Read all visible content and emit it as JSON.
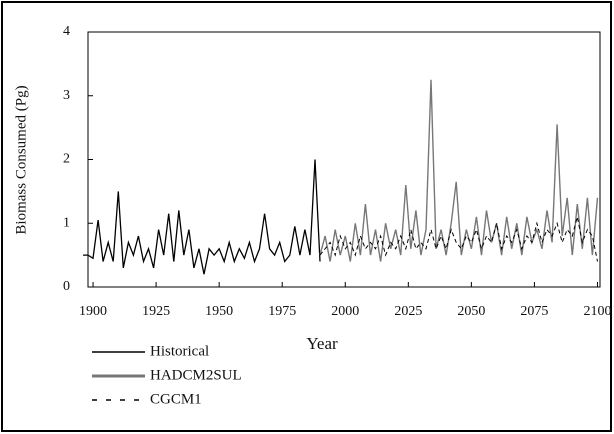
{
  "chart_data": {
    "type": "line",
    "xlabel": "Year",
    "ylabel": "Biomass Consumed (Pg)",
    "xlim": [
      1898,
      2101
    ],
    "xticks": [
      1900,
      1925,
      1950,
      1975,
      2000,
      2025,
      2050,
      2075,
      2100
    ],
    "ylim": [
      0,
      4
    ],
    "yticks": [
      0,
      1,
      2,
      3,
      4
    ],
    "series": [
      {
        "name": "Historical",
        "color": "#000000",
        "x": [
          1896,
          1898,
          1900,
          1902,
          1904,
          1906,
          1908,
          1910,
          1912,
          1914,
          1916,
          1918,
          1920,
          1922,
          1924,
          1926,
          1928,
          1930,
          1932,
          1934,
          1936,
          1938,
          1940,
          1942,
          1944,
          1946,
          1948,
          1950,
          1952,
          1954,
          1956,
          1958,
          1960,
          1962,
          1964,
          1966,
          1968,
          1970,
          1972,
          1974,
          1976,
          1978,
          1980,
          1982,
          1984,
          1986,
          1988,
          1990
        ],
        "values": [
          0.5,
          0.5,
          0.45,
          1.05,
          0.4,
          0.7,
          0.4,
          1.5,
          0.3,
          0.7,
          0.5,
          0.8,
          0.4,
          0.6,
          0.3,
          0.9,
          0.5,
          1.15,
          0.4,
          1.2,
          0.5,
          0.9,
          0.3,
          0.6,
          0.2,
          0.6,
          0.5,
          0.6,
          0.4,
          0.7,
          0.4,
          0.6,
          0.45,
          0.7,
          0.4,
          0.6,
          1.15,
          0.6,
          0.5,
          0.7,
          0.4,
          0.5,
          0.95,
          0.5,
          0.9,
          0.5,
          2.0,
          0.4
        ]
      },
      {
        "name": "HADCM2SUL",
        "color": "#777777",
        "x": [
          1990,
          1992,
          1994,
          1996,
          1998,
          2000,
          2002,
          2004,
          2006,
          2008,
          2010,
          2012,
          2014,
          2016,
          2018,
          2020,
          2022,
          2024,
          2026,
          2028,
          2030,
          2032,
          2034,
          2036,
          2038,
          2040,
          2042,
          2044,
          2046,
          2048,
          2050,
          2052,
          2054,
          2056,
          2058,
          2060,
          2062,
          2064,
          2066,
          2068,
          2070,
          2072,
          2074,
          2076,
          2078,
          2080,
          2082,
          2084,
          2086,
          2088,
          2090,
          2092,
          2094,
          2096,
          2098,
          2100
        ],
        "values": [
          0.5,
          0.8,
          0.4,
          0.9,
          0.5,
          0.8,
          0.4,
          1.0,
          0.5,
          1.3,
          0.5,
          0.9,
          0.4,
          1.0,
          0.6,
          0.9,
          0.5,
          1.6,
          0.6,
          1.2,
          0.5,
          0.9,
          3.25,
          0.6,
          0.9,
          0.5,
          1.0,
          1.65,
          0.5,
          0.9,
          0.6,
          1.1,
          0.5,
          1.2,
          0.7,
          1.0,
          0.5,
          1.1,
          0.6,
          1.0,
          0.5,
          1.1,
          0.7,
          0.9,
          0.6,
          1.2,
          0.7,
          2.55,
          0.8,
          1.4,
          0.5,
          1.3,
          0.6,
          1.4,
          0.5,
          1.4
        ]
      },
      {
        "name": "CGCM1",
        "color": "#000000",
        "dashed": true,
        "x": [
          1990,
          1992,
          1994,
          1996,
          1998,
          2000,
          2002,
          2004,
          2006,
          2008,
          2010,
          2012,
          2014,
          2016,
          2018,
          2020,
          2022,
          2024,
          2026,
          2028,
          2030,
          2032,
          2034,
          2036,
          2038,
          2040,
          2042,
          2044,
          2046,
          2048,
          2050,
          2052,
          2054,
          2056,
          2058,
          2060,
          2062,
          2064,
          2066,
          2068,
          2070,
          2072,
          2074,
          2076,
          2078,
          2080,
          2082,
          2084,
          2086,
          2088,
          2090,
          2092,
          2094,
          2096,
          2098,
          2100
        ],
        "values": [
          0.5,
          0.6,
          0.7,
          0.5,
          0.8,
          0.6,
          0.7,
          0.5,
          0.8,
          0.6,
          0.7,
          0.6,
          0.8,
          0.5,
          0.7,
          0.6,
          0.8,
          0.6,
          0.9,
          0.6,
          0.7,
          0.6,
          0.9,
          0.6,
          0.8,
          0.6,
          0.9,
          0.7,
          0.6,
          0.8,
          0.7,
          0.9,
          0.6,
          0.8,
          0.7,
          1.0,
          0.6,
          0.8,
          0.7,
          0.9,
          0.6,
          0.8,
          0.7,
          1.0,
          0.7,
          0.9,
          0.8,
          1.0,
          0.7,
          0.9,
          0.8,
          1.1,
          0.7,
          0.9,
          0.8,
          0.4
        ]
      }
    ]
  }
}
